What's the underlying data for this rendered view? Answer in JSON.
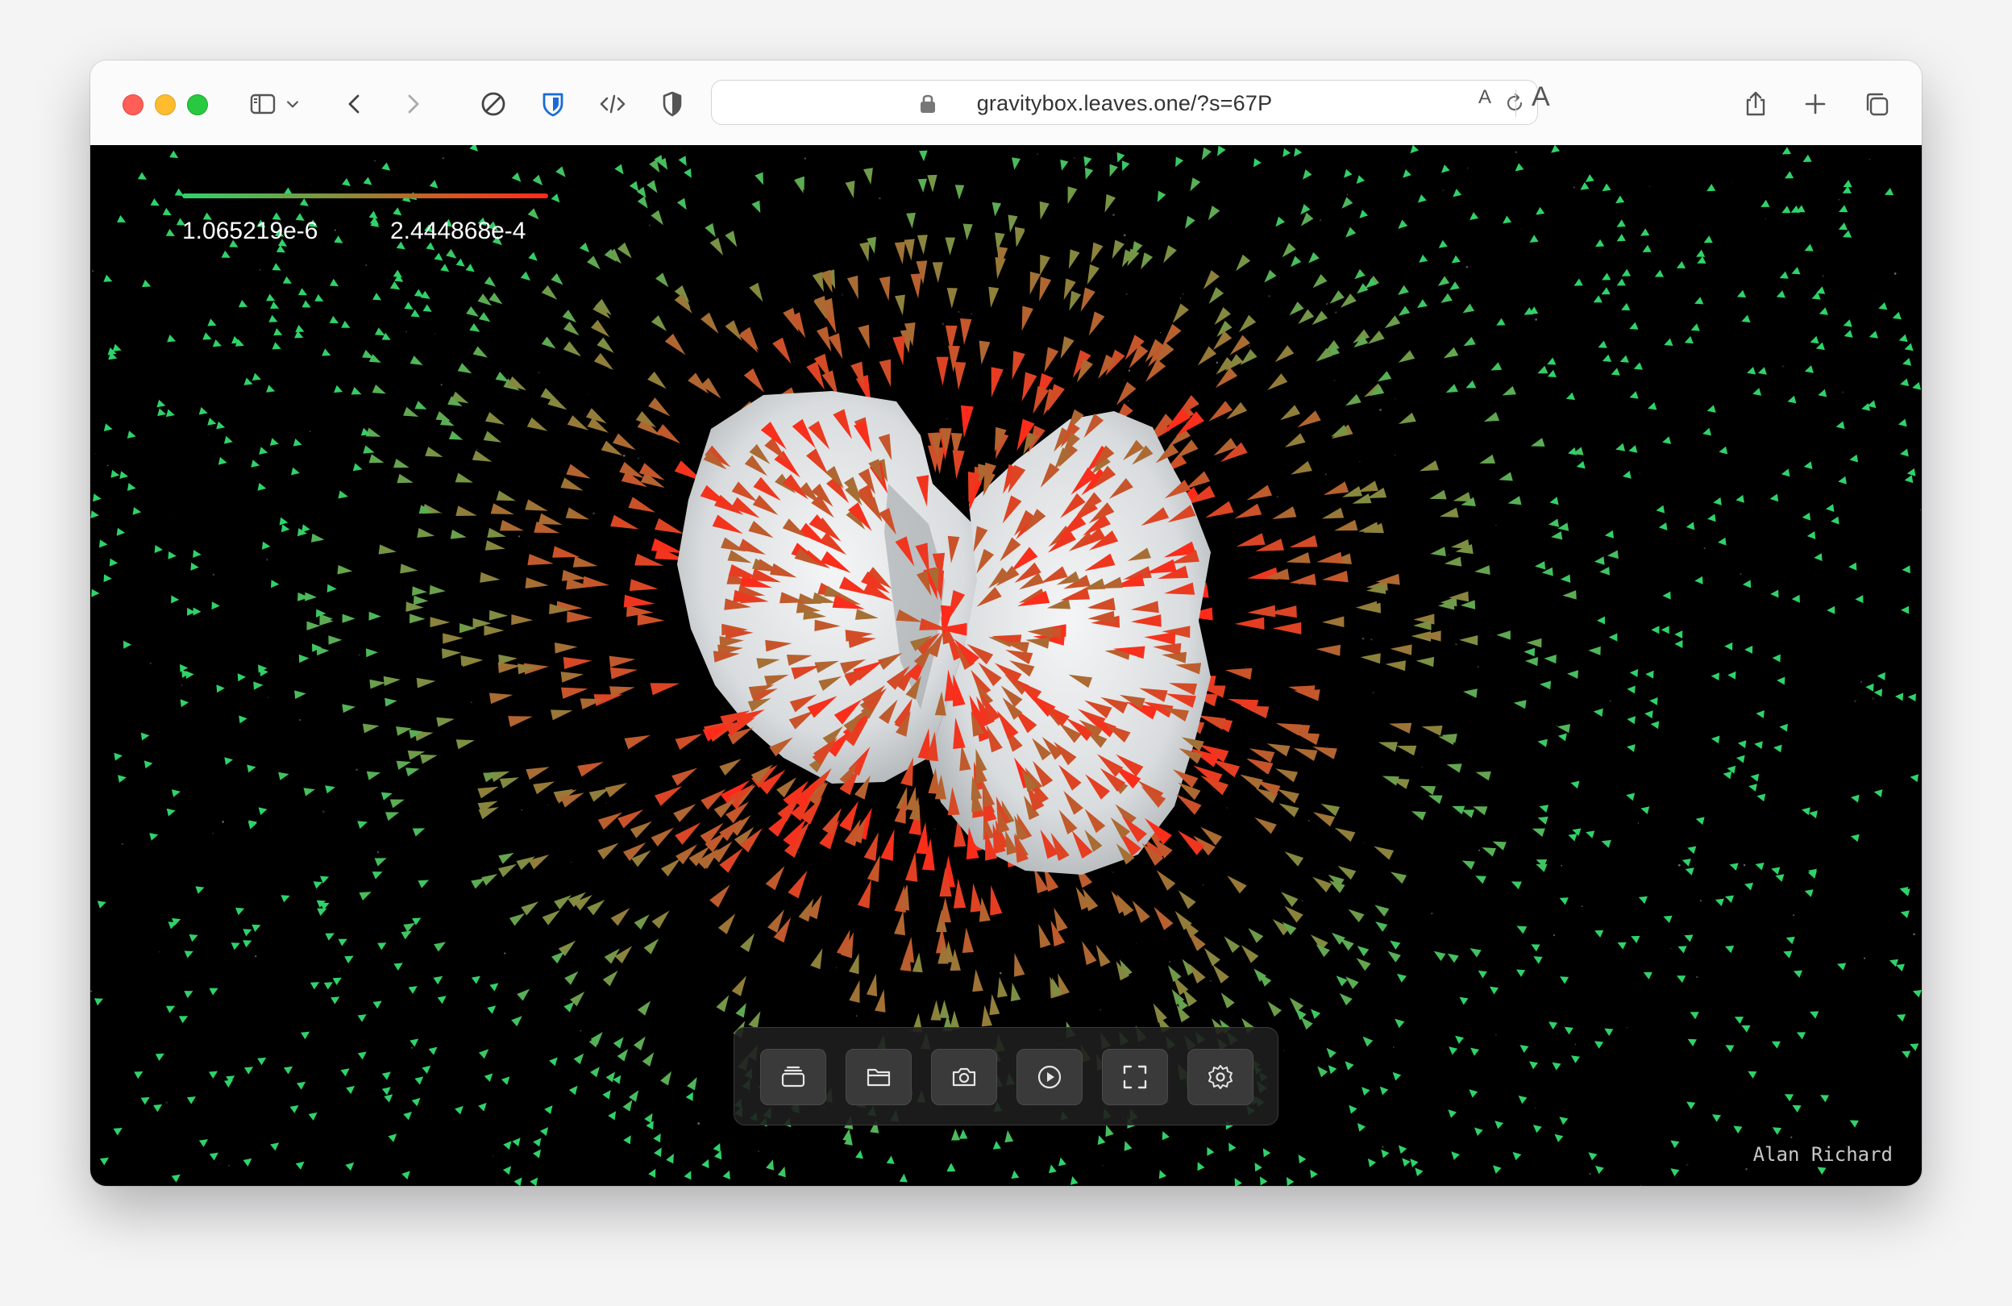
{
  "browser": {
    "url": "gravitybox.leaves.one/?s=67P",
    "font_small_label": "A",
    "font_large_label": "A",
    "toolbar_icons": [
      "sidebar-icon",
      "chevron-down-icon",
      "back-icon",
      "forward-icon",
      "block-icon",
      "bitwarden-shield-icon",
      "code-icon",
      "privacy-shield-icon",
      "lock-icon",
      "reload-icon",
      "share-icon",
      "plus-icon",
      "tabs-overview-icon"
    ]
  },
  "legend": {
    "min": "1.065219e-6",
    "max": "2.444868e-4",
    "colors": [
      "#2fd36a",
      "#8a8a3a",
      "#d9541e",
      "#ff2a1a"
    ]
  },
  "dock": {
    "buttons": [
      "layers-icon",
      "folder-icon",
      "camera-icon",
      "play-icon",
      "fullscreen-icon",
      "gear-icon"
    ]
  },
  "credit": "Alan Richard",
  "colors": {
    "background": "#000000",
    "comet": "#e6e8e9",
    "vector_low": "#2fd36a",
    "vector_high": "#ff2a1a"
  }
}
